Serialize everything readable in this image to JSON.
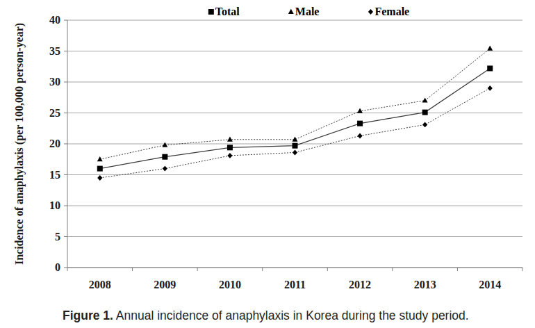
{
  "chart_data": {
    "type": "line",
    "title": "Figure 1. Annual incidence of anaphylaxis in Korea during the study period.",
    "y_label": "Incidence of anaphylaxis (per 100,000 person-year)",
    "categories": [
      "2008",
      "2009",
      "2010",
      "2011",
      "2012",
      "2013",
      "2014"
    ],
    "series": [
      {
        "name": "Total",
        "color": "#3a3a3a",
        "marker": "square",
        "line_style": "solid",
        "values": [
          16.0,
          17.9,
          19.4,
          19.7,
          23.3,
          25.1,
          32.2
        ]
      },
      {
        "name": "Male",
        "color": "#3a3a3a",
        "marker": "triangle",
        "line_style": "dotted",
        "values": [
          17.5,
          19.8,
          20.7,
          20.7,
          25.3,
          27.0,
          35.4
        ]
      },
      {
        "name": "Female",
        "color": "#3a3a3a",
        "marker": "diamond",
        "line_style": "dotted",
        "values": [
          14.5,
          16.0,
          18.1,
          18.6,
          21.3,
          23.1,
          29.0
        ]
      }
    ],
    "ylim": [
      0,
      40
    ],
    "yticks": [
      0,
      5,
      10,
      15,
      20,
      25,
      30,
      35,
      40
    ],
    "grid": true,
    "legend": "top"
  }
}
